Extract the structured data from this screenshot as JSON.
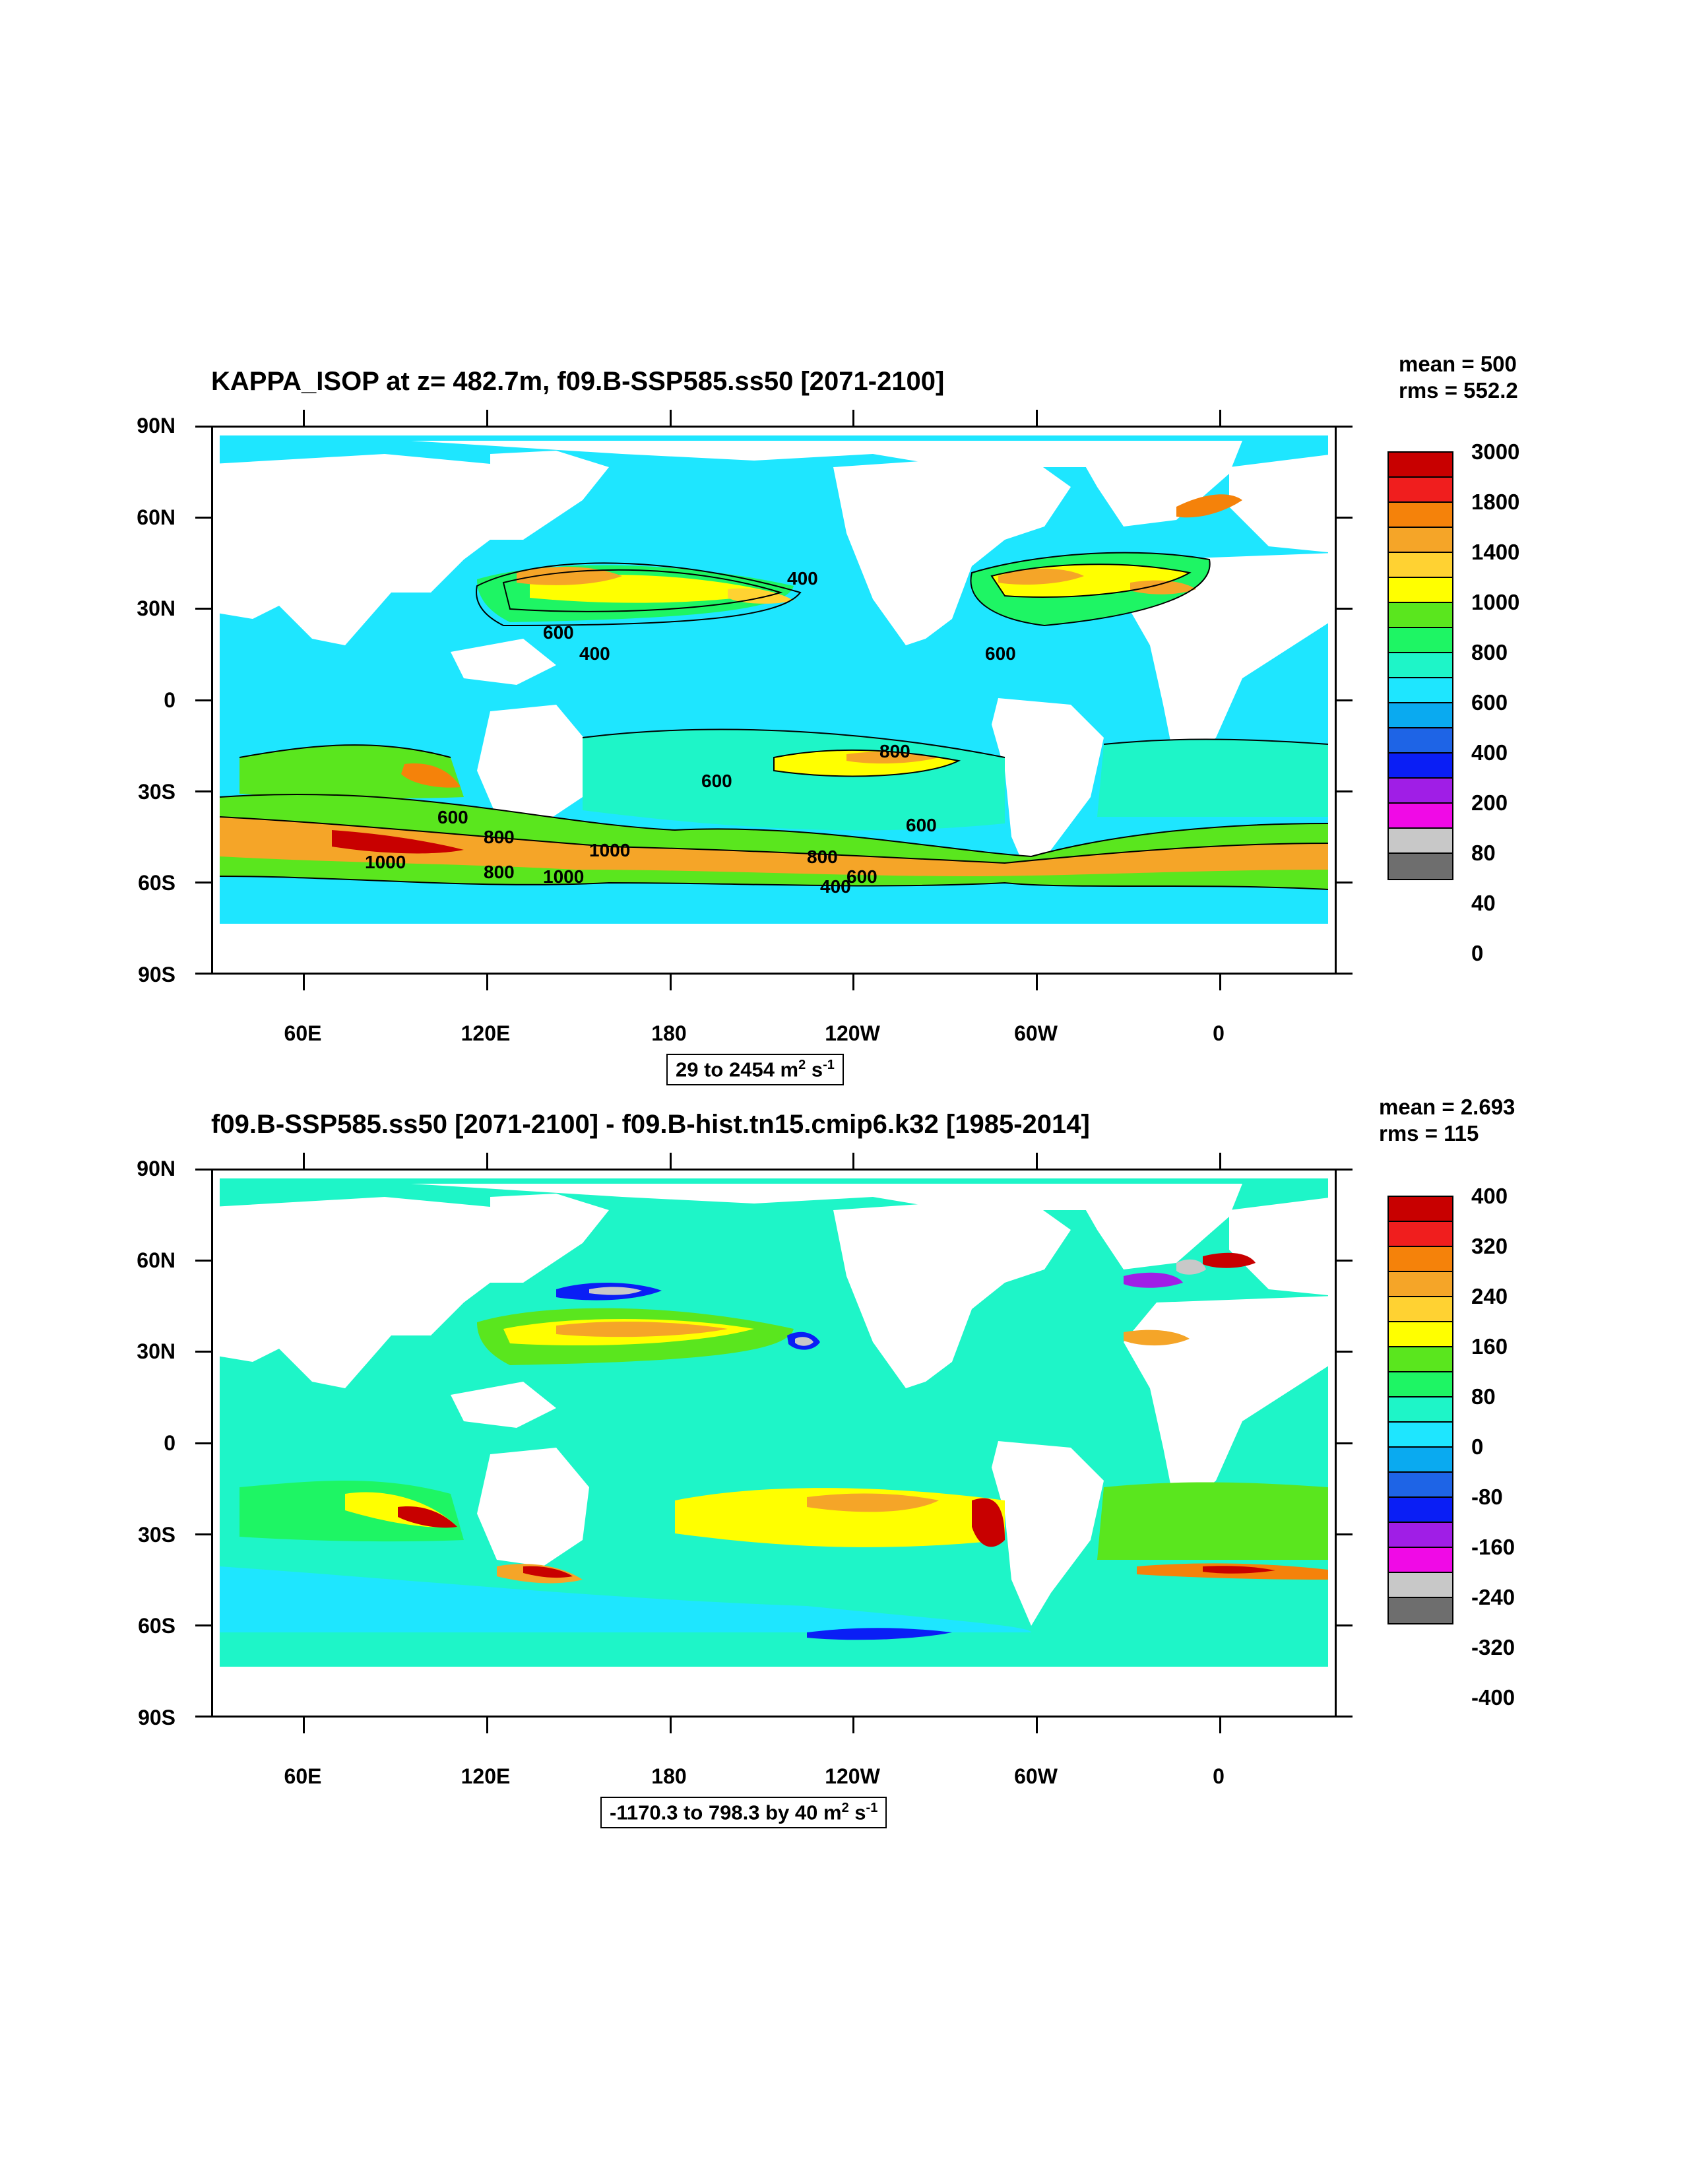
{
  "panels": [
    {
      "title": "KAPPA_ISOP at z= 482.7m, f09.B-SSP585.ss50 [2071-2100]",
      "mean": "mean = 500",
      "rms": "rms = 552.2",
      "range_text": "29 to 2454 m",
      "range_unit_sup1": "2",
      "range_unit_mid": " s",
      "range_unit_sup2": "-1",
      "colorbar_labels": [
        "3000",
        "1800",
        "1400",
        "1000",
        "800",
        "600",
        "400",
        "200",
        "80",
        "40",
        "0"
      ],
      "contour_labels": [
        "600",
        "400",
        "400",
        "600",
        "800",
        "600",
        "600",
        "800",
        "1000",
        "800",
        "1000",
        "1000",
        "600",
        "800",
        "600",
        "400"
      ]
    },
    {
      "title": "f09.B-SSP585.ss50 [2071-2100] - f09.B-hist.tn15.cmip6.k32 [1985-2014]",
      "mean": "mean = 2.693",
      "rms": "rms = 115",
      "range_text": "-1170.3 to 798.3 by 40 m",
      "range_unit_sup1": "2",
      "range_unit_mid": " s",
      "range_unit_sup2": "-1",
      "colorbar_labels": [
        "400",
        "320",
        "240",
        "160",
        "80",
        "0",
        "-80",
        "-160",
        "-240",
        "-320",
        "-400"
      ]
    }
  ],
  "y_axis_labels": [
    "90N",
    "60N",
    "30N",
    "0",
    "30S",
    "60S",
    "90S"
  ],
  "x_axis_labels": [
    "60E",
    "120E",
    "180",
    "120W",
    "60W",
    "0"
  ],
  "colorbar_colors": [
    "#c80000",
    "#f01e1e",
    "#f5820a",
    "#f5a528",
    "#ffd232",
    "#ffff00",
    "#5ae61e",
    "#1ef564",
    "#1ef5c8",
    "#1ee6ff",
    "#0aaaf0",
    "#1e64e6",
    "#0a1ef5",
    "#a01ee6",
    "#f00ae6",
    "#c8c8c8",
    "#6e6e6e"
  ]
}
